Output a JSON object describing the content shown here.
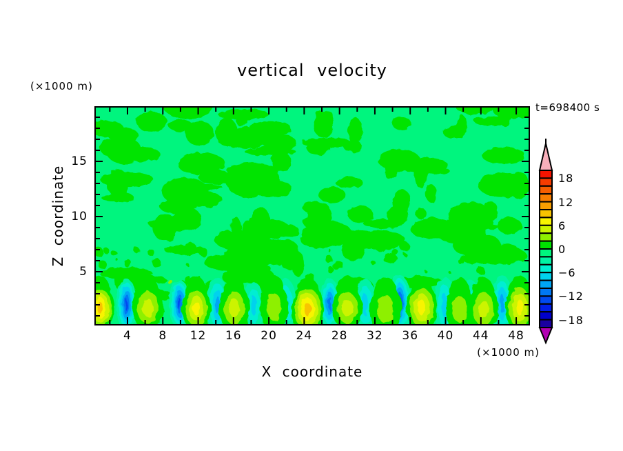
{
  "page": {
    "background": "#ffffff"
  },
  "chart_data": {
    "type": "filled-contour",
    "title": "vertical velocity",
    "time_label": "t=698400 s",
    "x_axis": {
      "label": "X coordinate",
      "units_label": "(×1000 m)",
      "range": [
        0,
        50
      ],
      "major_tick_values": [
        4,
        8,
        12,
        16,
        20,
        24,
        28,
        32,
        36,
        40,
        44,
        48
      ],
      "major_tick_labels": [
        "4",
        "8",
        "12",
        "16",
        "20",
        "24",
        "28",
        "32",
        "36",
        "40",
        "44",
        "48"
      ],
      "minor_tick_step": 2
    },
    "y_axis": {
      "label": "Z coordinate",
      "units_label": "(×1000 m)",
      "range": [
        0,
        20
      ],
      "major_tick_values": [
        5,
        10,
        15
      ],
      "major_tick_labels": [
        "5",
        "10",
        "15"
      ],
      "minor_tick_step": 1
    },
    "colorbar": {
      "min": -20,
      "max": 20,
      "interval": 2,
      "labels": [
        "18",
        "12",
        "6",
        "0",
        "−6",
        "−12",
        "−18"
      ],
      "label_values": [
        18,
        12,
        6,
        0,
        -6,
        -12,
        -18
      ],
      "colors": [
        "#f61400",
        "#f63c00",
        "#f65e00",
        "#f87e00",
        "#f89e00",
        "#f8c400",
        "#f8f400",
        "#ccf400",
        "#8ef000",
        "#00e400",
        "#00f57e",
        "#00f2a4",
        "#00eed2",
        "#00d2ee",
        "#00a6f4",
        "#0078f4",
        "#004af0",
        "#001ee8",
        "#0000cc",
        "#1a00a0"
      ],
      "over_arrow_color": "#f7afba",
      "under_arrow_color": "#b200b2"
    },
    "field": {
      "description": "near-zero vertical velocity aloft (bands between -2 and +2 m/s) with alternating boundary-layer updraft and downdraft cells below z=4 km",
      "background_color": "#00f57e",
      "patch_color": "#00e400",
      "noise_seed": 7,
      "updrafts": [
        {
          "x": 0.9,
          "peak": 9
        },
        {
          "x": 6.3,
          "peak": 5
        },
        {
          "x": 11.8,
          "peak": 7
        },
        {
          "x": 16.1,
          "peak": 5
        },
        {
          "x": 20.6,
          "peak": 3
        },
        {
          "x": 24.4,
          "peak": 9
        },
        {
          "x": 28.9,
          "peak": 5
        },
        {
          "x": 33.2,
          "peak": 3
        },
        {
          "x": 37.3,
          "peak": 7
        },
        {
          "x": 41.6,
          "peak": 3
        },
        {
          "x": 44.3,
          "peak": 5
        },
        {
          "x": 48.4,
          "peak": 7
        }
      ],
      "downdrafts": [
        {
          "x": 3.9,
          "peak": -13
        },
        {
          "x": 9.9,
          "peak": -13
        },
        {
          "x": 14.2,
          "peak": -9
        },
        {
          "x": 18.3,
          "peak": -7
        },
        {
          "x": 21.9,
          "peak": -7
        },
        {
          "x": 26.9,
          "peak": -11
        },
        {
          "x": 30.9,
          "peak": -7
        },
        {
          "x": 34.8,
          "peak": -13
        },
        {
          "x": 39.9,
          "peak": -7
        },
        {
          "x": 42.8,
          "peak": -5
        },
        {
          "x": 46.4,
          "peak": -9
        },
        {
          "x": 49.7,
          "peak": -7
        }
      ]
    }
  }
}
